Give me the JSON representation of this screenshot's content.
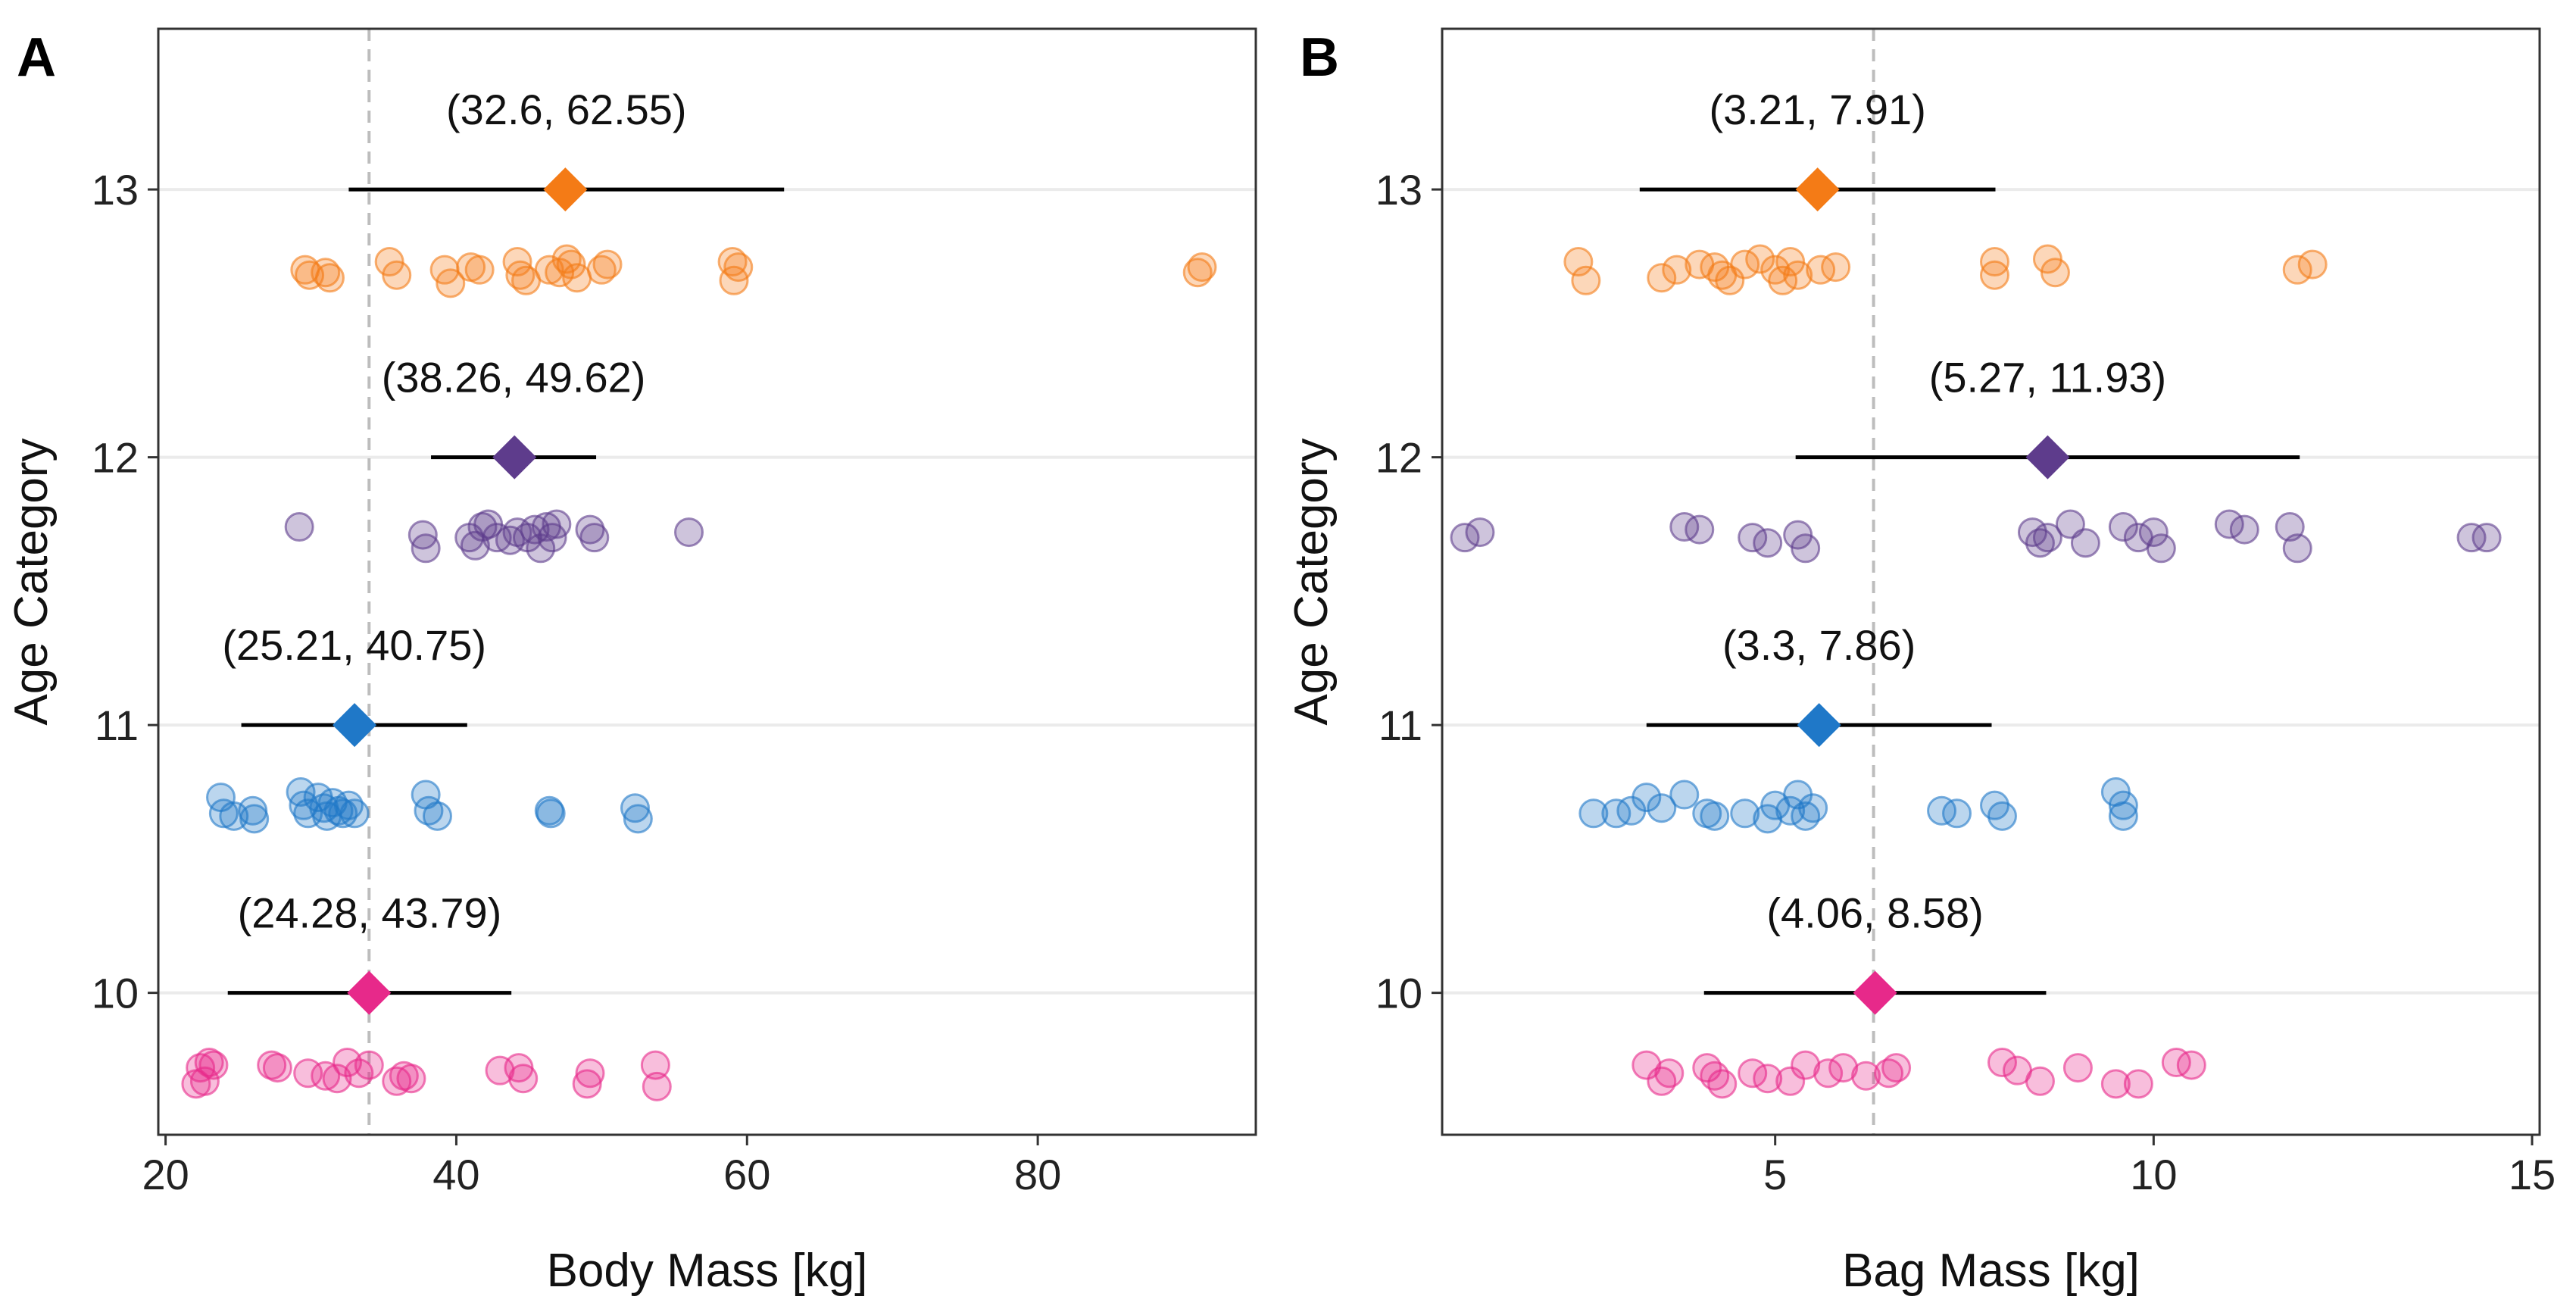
{
  "figure": {
    "colors": {
      "age10": "#E7298A",
      "age11": "#1F78C8",
      "age12": "#5E3C8C",
      "age13": "#F47B16",
      "interval": "#000000",
      "reference_line": "#BDBDBD",
      "gridline": "#EBEBEB"
    }
  },
  "chart_data": [
    {
      "panel_label": "A",
      "type": "scatter",
      "xlabel": "Body Mass [kg]",
      "ylabel": "Age Category",
      "xlim": [
        19.5,
        95
      ],
      "ylim": [
        9.47,
        13.6
      ],
      "xticks": [
        20,
        40,
        60,
        80
      ],
      "yticks": [
        10,
        11,
        12,
        13
      ],
      "grid": "horizontal major only",
      "reference_line_x": 34,
      "series": [
        {
          "age": 10,
          "color": "age10",
          "mean": 34,
          "ci": [
            24.28,
            43.79
          ],
          "ci_label": "(24.28, 43.79)",
          "points": [
            [
              22.1,
              9.66
            ],
            [
              22.4,
              9.72
            ],
            [
              22.7,
              9.67
            ],
            [
              23.0,
              9.74
            ],
            [
              23.3,
              9.73
            ],
            [
              27.3,
              9.73
            ],
            [
              27.7,
              9.72
            ],
            [
              29.8,
              9.7
            ],
            [
              31.0,
              9.69
            ],
            [
              31.8,
              9.68
            ],
            [
              32.5,
              9.74
            ],
            [
              33.3,
              9.7
            ],
            [
              34.0,
              9.73
            ],
            [
              35.9,
              9.67
            ],
            [
              36.4,
              9.69
            ],
            [
              36.9,
              9.68
            ],
            [
              43.0,
              9.71
            ],
            [
              44.3,
              9.72
            ],
            [
              44.6,
              9.68
            ],
            [
              49.0,
              9.66
            ],
            [
              49.2,
              9.7
            ],
            [
              53.7,
              9.73
            ],
            [
              53.8,
              9.65
            ]
          ]
        },
        {
          "age": 11,
          "color": "age11",
          "mean": 33,
          "ci": [
            25.21,
            40.75
          ],
          "ci_label": "(25.21, 40.75)",
          "points": [
            [
              23.8,
              10.73
            ],
            [
              24.0,
              10.67
            ],
            [
              24.7,
              10.66
            ],
            [
              26.0,
              10.68
            ],
            [
              26.1,
              10.65
            ],
            [
              29.3,
              10.75
            ],
            [
              29.5,
              10.7
            ],
            [
              29.8,
              10.67
            ],
            [
              30.5,
              10.73
            ],
            [
              30.9,
              10.69
            ],
            [
              31.1,
              10.66
            ],
            [
              31.5,
              10.71
            ],
            [
              31.9,
              10.68
            ],
            [
              32.2,
              10.67
            ],
            [
              32.6,
              10.7
            ],
            [
              33.0,
              10.67
            ],
            [
              37.9,
              10.74
            ],
            [
              38.1,
              10.68
            ],
            [
              38.7,
              10.66
            ],
            [
              46.4,
              10.68
            ],
            [
              46.5,
              10.67
            ],
            [
              52.3,
              10.69
            ],
            [
              52.5,
              10.65
            ]
          ]
        },
        {
          "age": 12,
          "color": "age12",
          "mean": 44,
          "ci": [
            38.26,
            49.62
          ],
          "ci_label": "(38.26, 49.62)",
          "points": [
            [
              29.2,
              11.74
            ],
            [
              37.7,
              11.71
            ],
            [
              37.9,
              11.66
            ],
            [
              40.9,
              11.7
            ],
            [
              41.3,
              11.67
            ],
            [
              41.8,
              11.74
            ],
            [
              42.2,
              11.75
            ],
            [
              42.8,
              11.7
            ],
            [
              43.7,
              11.69
            ],
            [
              44.2,
              11.72
            ],
            [
              44.9,
              11.7
            ],
            [
              45.4,
              11.73
            ],
            [
              45.8,
              11.66
            ],
            [
              46.2,
              11.74
            ],
            [
              46.6,
              11.7
            ],
            [
              46.9,
              11.75
            ],
            [
              49.2,
              11.73
            ],
            [
              49.5,
              11.7
            ],
            [
              56.0,
              11.72
            ]
          ]
        },
        {
          "age": 13,
          "color": "age13",
          "mean": 47.5,
          "ci": [
            32.6,
            62.55
          ],
          "ci_label": "(32.6, 62.55)",
          "points": [
            [
              29.6,
              12.7
            ],
            [
              29.9,
              12.68
            ],
            [
              31.0,
              12.69
            ],
            [
              31.3,
              12.67
            ],
            [
              35.4,
              12.73
            ],
            [
              35.9,
              12.68
            ],
            [
              39.2,
              12.7
            ],
            [
              39.6,
              12.65
            ],
            [
              41.0,
              12.71
            ],
            [
              41.6,
              12.7
            ],
            [
              44.2,
              12.73
            ],
            [
              44.4,
              12.68
            ],
            [
              44.8,
              12.66
            ],
            [
              46.4,
              12.7
            ],
            [
              47.1,
              12.69
            ],
            [
              47.6,
              12.74
            ],
            [
              47.9,
              12.72
            ],
            [
              48.3,
              12.67
            ],
            [
              50.0,
              12.7
            ],
            [
              50.4,
              12.72
            ],
            [
              59.0,
              12.73
            ],
            [
              59.1,
              12.66
            ],
            [
              59.4,
              12.71
            ],
            [
              91.0,
              12.69
            ],
            [
              91.3,
              12.71
            ]
          ]
        }
      ]
    },
    {
      "panel_label": "B",
      "type": "scatter",
      "xlabel": "Bag Mass [kg]",
      "ylabel": "Age Category",
      "xlim": [
        0.6,
        15.1
      ],
      "ylim": [
        9.47,
        13.6
      ],
      "xticks": [
        5,
        10,
        15
      ],
      "yticks": [
        10,
        11,
        12,
        13
      ],
      "grid": "horizontal major only",
      "reference_line_x": 6.3,
      "series": [
        {
          "age": 10,
          "color": "age10",
          "mean": 6.32,
          "ci": [
            4.06,
            8.58
          ],
          "ci_label": "(4.06, 8.58)",
          "points": [
            [
              3.3,
              9.73
            ],
            [
              3.5,
              9.67
            ],
            [
              3.6,
              9.7
            ],
            [
              4.1,
              9.72
            ],
            [
              4.2,
              9.69
            ],
            [
              4.3,
              9.66
            ],
            [
              4.7,
              9.7
            ],
            [
              4.9,
              9.68
            ],
            [
              5.2,
              9.67
            ],
            [
              5.4,
              9.73
            ],
            [
              5.7,
              9.7
            ],
            [
              5.9,
              9.72
            ],
            [
              6.2,
              9.69
            ],
            [
              6.5,
              9.7
            ],
            [
              6.6,
              9.72
            ],
            [
              8.0,
              9.74
            ],
            [
              8.2,
              9.71
            ],
            [
              8.5,
              9.67
            ],
            [
              9.0,
              9.72
            ],
            [
              9.5,
              9.66
            ],
            [
              9.8,
              9.66
            ],
            [
              10.3,
              9.74
            ],
            [
              10.5,
              9.73
            ]
          ]
        },
        {
          "age": 11,
          "color": "age11",
          "mean": 5.58,
          "ci": [
            3.3,
            7.86
          ],
          "ci_label": "(3.3, 7.86)",
          "points": [
            [
              2.6,
              10.67
            ],
            [
              2.9,
              10.67
            ],
            [
              3.1,
              10.68
            ],
            [
              3.3,
              10.73
            ],
            [
              3.5,
              10.69
            ],
            [
              3.8,
              10.74
            ],
            [
              4.1,
              10.67
            ],
            [
              4.2,
              10.66
            ],
            [
              4.6,
              10.67
            ],
            [
              4.9,
              10.65
            ],
            [
              5.0,
              10.7
            ],
            [
              5.2,
              10.68
            ],
            [
              5.3,
              10.74
            ],
            [
              5.4,
              10.66
            ],
            [
              5.5,
              10.69
            ],
            [
              7.2,
              10.68
            ],
            [
              7.4,
              10.67
            ],
            [
              7.9,
              10.7
            ],
            [
              8.0,
              10.66
            ],
            [
              9.5,
              10.75
            ],
            [
              9.6,
              10.7
            ],
            [
              9.6,
              10.66
            ]
          ]
        },
        {
          "age": 12,
          "color": "age12",
          "mean": 8.6,
          "ci": [
            5.27,
            11.93
          ],
          "ci_label": "(5.27, 11.93)",
          "points": [
            [
              0.9,
              11.7
            ],
            [
              1.1,
              11.72
            ],
            [
              3.8,
              11.74
            ],
            [
              4.0,
              11.73
            ],
            [
              4.7,
              11.7
            ],
            [
              4.9,
              11.68
            ],
            [
              5.3,
              11.71
            ],
            [
              5.4,
              11.66
            ],
            [
              8.4,
              11.72
            ],
            [
              8.5,
              11.68
            ],
            [
              8.6,
              11.7
            ],
            [
              8.9,
              11.75
            ],
            [
              9.1,
              11.68
            ],
            [
              9.6,
              11.74
            ],
            [
              9.8,
              11.7
            ],
            [
              10.0,
              11.72
            ],
            [
              10.1,
              11.66
            ],
            [
              11.0,
              11.75
            ],
            [
              11.2,
              11.73
            ],
            [
              11.8,
              11.74
            ],
            [
              11.9,
              11.66
            ],
            [
              14.2,
              11.7
            ],
            [
              14.4,
              11.7
            ]
          ]
        },
        {
          "age": 13,
          "color": "age13",
          "mean": 5.56,
          "ci": [
            3.21,
            7.91
          ],
          "ci_label": "(3.21, 7.91)",
          "points": [
            [
              2.4,
              12.73
            ],
            [
              2.5,
              12.66
            ],
            [
              3.5,
              12.67
            ],
            [
              3.7,
              12.7
            ],
            [
              4.0,
              12.72
            ],
            [
              4.2,
              12.71
            ],
            [
              4.3,
              12.68
            ],
            [
              4.4,
              12.66
            ],
            [
              4.6,
              12.72
            ],
            [
              4.8,
              12.74
            ],
            [
              5.0,
              12.7
            ],
            [
              5.1,
              12.66
            ],
            [
              5.2,
              12.73
            ],
            [
              5.3,
              12.68
            ],
            [
              5.6,
              12.7
            ],
            [
              5.8,
              12.71
            ],
            [
              7.9,
              12.73
            ],
            [
              7.9,
              12.68
            ],
            [
              8.6,
              12.74
            ],
            [
              8.7,
              12.69
            ],
            [
              11.9,
              12.7
            ],
            [
              12.1,
              12.72
            ]
          ]
        }
      ]
    }
  ]
}
